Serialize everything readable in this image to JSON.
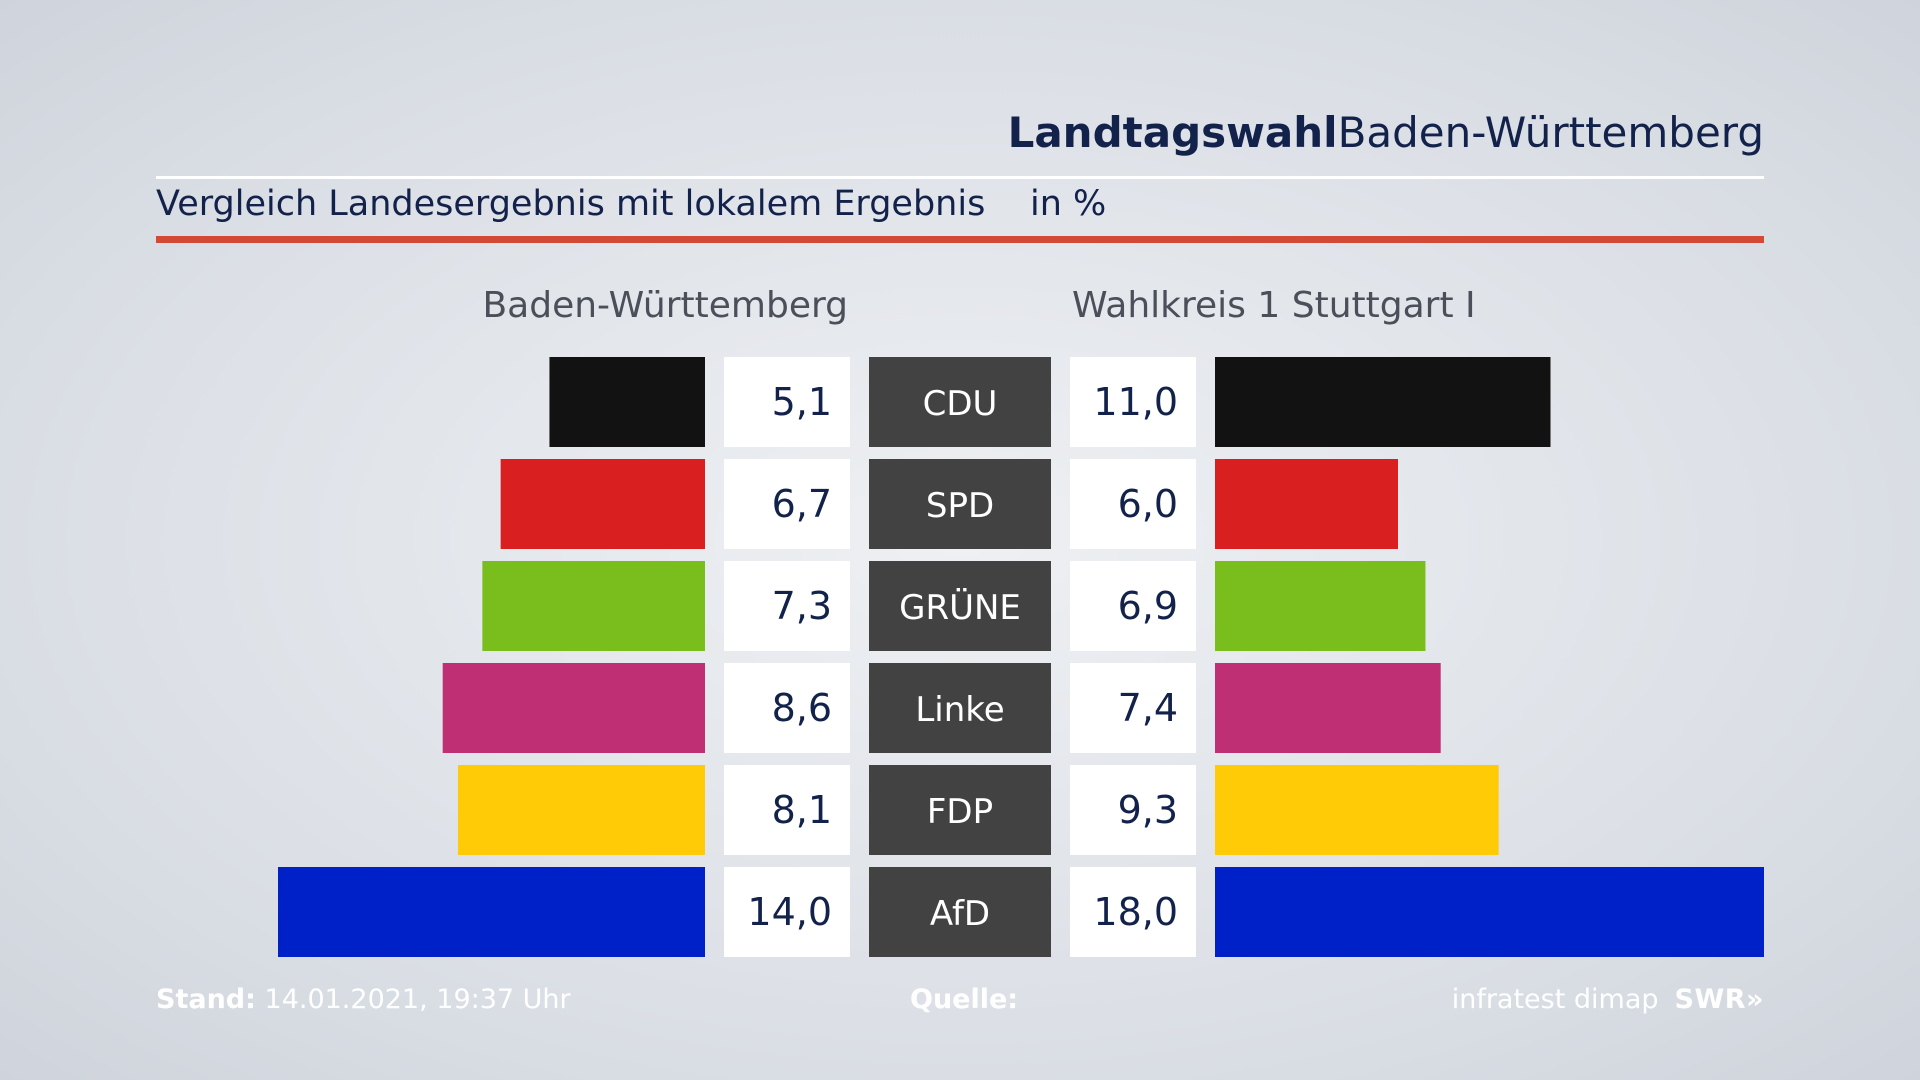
{
  "header": {
    "title_bold": "Landtagswahl",
    "title_regular": "Baden-Württemberg",
    "subtitle": "Vergleich Landesergebnis mit lokalem Ergebnis",
    "unit": "in %"
  },
  "colors": {
    "accent_rule": "#d24a35",
    "label_box": "#424242",
    "value_box": "#ffffff"
  },
  "chart_data": {
    "type": "bar",
    "categories": [
      "CDU",
      "SPD",
      "GRÜNE",
      "Linke",
      "FDP",
      "AfD"
    ],
    "colors": [
      "#121212",
      "#d91f1f",
      "#7abe1d",
      "#bf2f74",
      "#fecb06",
      "#0020c8"
    ],
    "series": [
      {
        "name": "Baden-Württemberg",
        "values": [
          5.1,
          6.7,
          7.3,
          8.6,
          8.1,
          14.0
        ],
        "labels": [
          "5,1",
          "6,7",
          "7,3",
          "8,6",
          "8,1",
          "14,0"
        ]
      },
      {
        "name": "Wahlkreis 1 Stuttgart I",
        "values": [
          11.0,
          6.0,
          6.9,
          7.4,
          9.3,
          18.0
        ],
        "labels": [
          "11,0",
          "6,0",
          "6,9",
          "7,4",
          "9,3",
          "18,0"
        ]
      }
    ],
    "ylabel": "in %"
  },
  "footer": {
    "stand_label": "Stand:",
    "stand_value": "14.01.2021, 19:37 Uhr",
    "quelle_label": "Quelle:",
    "source": "infratest dimap",
    "broadcaster": "SWR»"
  }
}
